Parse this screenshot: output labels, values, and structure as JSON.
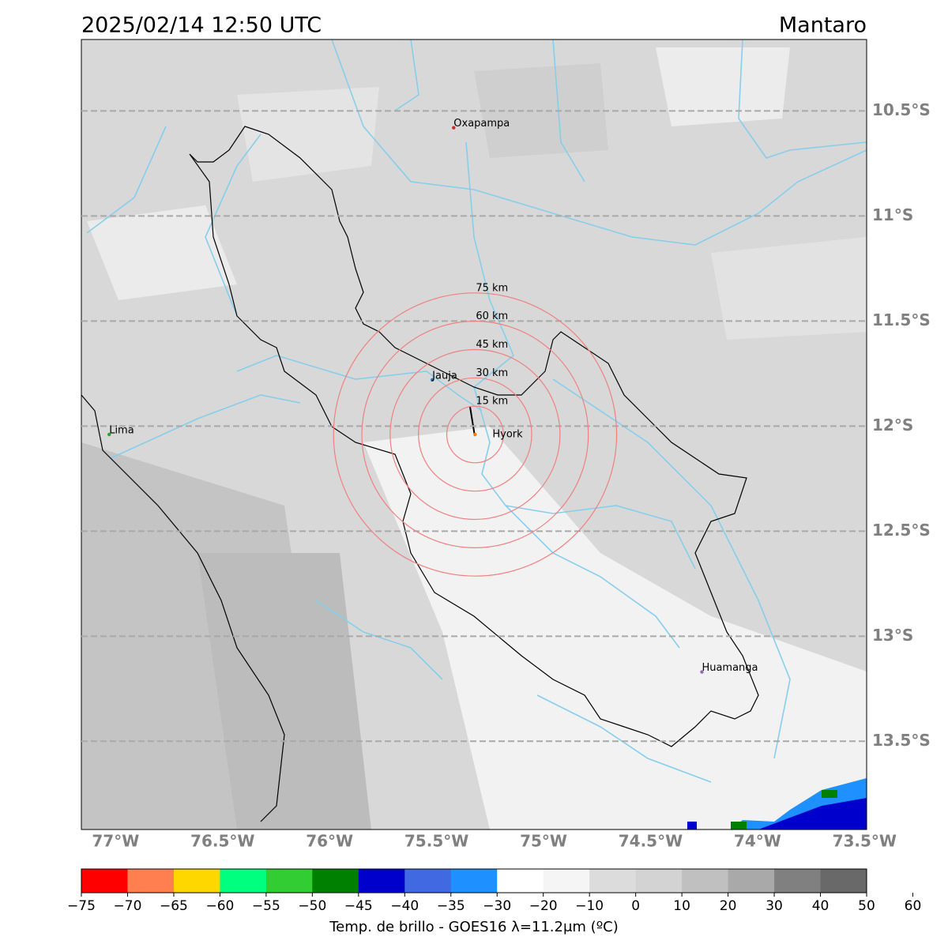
{
  "title": "2025/02/14 12:50 UTC",
  "region": "Mantaro",
  "map": {
    "xlim": [
      -77.16,
      -73.49
    ],
    "ylim": [
      -13.92,
      -10.16
    ],
    "lat_ticks": [
      {
        "value": -10.5,
        "label": "10.5°S"
      },
      {
        "value": -11,
        "label": "11°S"
      },
      {
        "value": -11.5,
        "label": "11.5°S"
      },
      {
        "value": -12,
        "label": "12°S"
      },
      {
        "value": -12.5,
        "label": "12.5°S"
      },
      {
        "value": -13,
        "label": "13°S"
      },
      {
        "value": -13.5,
        "label": "13.5°S"
      }
    ],
    "lon_ticks": [
      {
        "value": -77,
        "label": "77°W"
      },
      {
        "value": -76.5,
        "label": "76.5°W"
      },
      {
        "value": -76,
        "label": "76°W"
      },
      {
        "value": -75.5,
        "label": "75.5°W"
      },
      {
        "value": -75,
        "label": "75°W"
      },
      {
        "value": -74.5,
        "label": "74.5°W"
      },
      {
        "value": -74,
        "label": "74°W"
      },
      {
        "value": -73.5,
        "label": "73.5°W"
      }
    ],
    "cities": [
      {
        "name": "Oxapampa",
        "lon": -75.42,
        "lat": -10.58,
        "color": "#d62728"
      },
      {
        "name": "Jauja",
        "lon": -75.52,
        "lat": -11.78,
        "color": "#1f77b4"
      },
      {
        "name": "Lima",
        "lon": -77.03,
        "lat": -12.04,
        "color": "#2ca02c"
      },
      {
        "name": "Hyork",
        "lon": -75.32,
        "lat": -12.04,
        "color": "#ff7f0e"
      },
      {
        "name": "Huamanga",
        "lon": -74.26,
        "lat": -13.17,
        "color": "#9467bd"
      }
    ],
    "rings": [
      {
        "value": 15,
        "label": "15 km"
      },
      {
        "value": 30,
        "label": "30 km"
      },
      {
        "value": 45,
        "label": "45 km"
      },
      {
        "value": 60,
        "label": "60 km"
      },
      {
        "value": 75,
        "label": "75 km"
      }
    ],
    "ring_color": "#f08080"
  },
  "colorbar": {
    "label": "Temp. de brillo - GOES16 λ=11.2μm (ºC)",
    "colors": [
      "#ff0000",
      "#ff7f50",
      "#ffd700",
      "#00ff7f",
      "#32cd32",
      "#008000",
      "#0000cd",
      "#4169e1",
      "#1e90ff",
      "#ffffff",
      "#f5f5f5",
      "#dcdcdc",
      "#d3d3d3",
      "#c0c0c0",
      "#a9a9a9",
      "#808080",
      "#696969",
      "#000000"
    ],
    "ticks": [
      {
        "value": -75,
        "label": "−75"
      },
      {
        "value": -70,
        "label": "−70"
      },
      {
        "value": -65,
        "label": "−65"
      },
      {
        "value": -60,
        "label": "−60"
      },
      {
        "value": -55,
        "label": "−55"
      },
      {
        "value": -50,
        "label": "−50"
      },
      {
        "value": -45,
        "label": "−45"
      },
      {
        "value": -40,
        "label": "−40"
      },
      {
        "value": -35,
        "label": "−35"
      },
      {
        "value": -30,
        "label": "−30"
      },
      {
        "value": -20,
        "label": "−20"
      },
      {
        "value": -10,
        "label": "−10"
      },
      0,
      10,
      20,
      30,
      40,
      50,
      60
    ]
  }
}
